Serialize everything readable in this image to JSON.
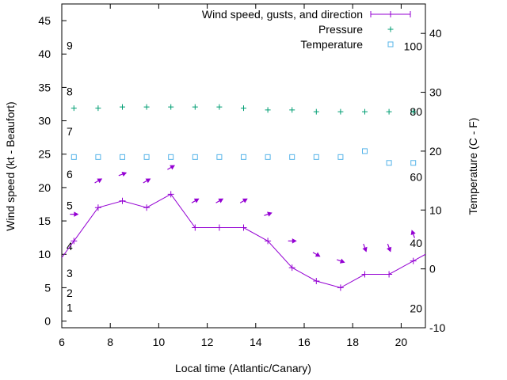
{
  "chart_data": {
    "type": "line",
    "xlabel": "Local time (Atlantic/Canary)",
    "ylabel_left": "Wind speed (kt - Beaufort)",
    "ylabel_right": "Temperature (C - F)",
    "xlim": [
      6,
      21
    ],
    "ylim_left": [
      -1,
      47.5
    ],
    "ylim_right": [
      -10,
      45
    ],
    "x_ticks": [
      6,
      8,
      10,
      12,
      14,
      16,
      18,
      20
    ],
    "y_ticks_left": [
      0,
      5,
      10,
      15,
      20,
      25,
      30,
      35,
      40,
      45
    ],
    "y_ticks_right": [
      -10,
      0,
      10,
      20,
      30,
      40
    ],
    "beaufort_ticks": [
      {
        "label": "1",
        "kt": 2
      },
      {
        "label": "2",
        "kt": 4.2
      },
      {
        "label": "3",
        "kt": 7.2
      },
      {
        "label": "4",
        "kt": 11.2
      },
      {
        "label": "5",
        "kt": 17.3
      },
      {
        "label": "6",
        "kt": 22
      },
      {
        "label": "7",
        "kt": 28.4
      },
      {
        "label": "8",
        "kt": 34.4
      },
      {
        "label": "9",
        "kt": 41.3
      }
    ],
    "fahrenheit_ticks": [
      {
        "label": "20",
        "value": -6.7
      },
      {
        "label": "40",
        "value": 4.4
      },
      {
        "label": "60",
        "value": 15.6
      },
      {
        "label": "80",
        "value": 26.7
      },
      {
        "label": "100",
        "value": 37.8
      }
    ],
    "grid": false,
    "legend_position": "top-right",
    "series": [
      {
        "name": "Wind speed, gusts, and direction",
        "axis": "left",
        "color": "#9400d3",
        "style": "line-points",
        "x": [
          5.5,
          6.5,
          7.5,
          8.5,
          9.5,
          10.5,
          11.5,
          12.5,
          13.5,
          14.5,
          15.5,
          16.5,
          17.5,
          18.5,
          19.5,
          20.5,
          21.5
        ],
        "y": [
          7,
          12,
          17,
          18,
          17,
          19,
          14,
          14,
          14,
          12,
          8,
          6,
          5,
          7,
          7,
          9,
          11
        ]
      },
      {
        "name": "Pressure",
        "axis": "right",
        "color": "#009e73",
        "style": "points",
        "x": [
          6.5,
          7.5,
          8.5,
          9.5,
          10.5,
          11.5,
          12.5,
          13.5,
          14.5,
          15.5,
          16.5,
          17.5,
          18.5,
          19.5,
          20.5
        ],
        "y": [
          27.3,
          27.3,
          27.5,
          27.5,
          27.5,
          27.5,
          27.5,
          27.3,
          27.0,
          27.0,
          26.7,
          26.7,
          26.7,
          26.7,
          26.7
        ]
      },
      {
        "name": "Temperature",
        "axis": "right",
        "color": "#56b4e9",
        "style": "points",
        "x": [
          6.5,
          7.5,
          8.5,
          9.5,
          10.5,
          11.5,
          12.5,
          13.5,
          14.5,
          15.5,
          16.5,
          17.5,
          18.5,
          19.5,
          20.5
        ],
        "y": [
          19,
          19,
          19,
          19,
          19,
          19,
          19,
          19,
          19,
          19,
          19,
          19,
          20,
          18,
          18
        ]
      }
    ],
    "wind_arrows": {
      "color": "#9400d3",
      "points": [
        {
          "x": 6.5,
          "y": 16,
          "dir": 90
        },
        {
          "x": 7.5,
          "y": 21,
          "dir": 60
        },
        {
          "x": 8.5,
          "y": 22,
          "dir": 70
        },
        {
          "x": 9.5,
          "y": 21,
          "dir": 60
        },
        {
          "x": 10.5,
          "y": 23,
          "dir": 60
        },
        {
          "x": 11.5,
          "y": 18,
          "dir": 60
        },
        {
          "x": 12.5,
          "y": 18,
          "dir": 60
        },
        {
          "x": 13.5,
          "y": 18,
          "dir": 60
        },
        {
          "x": 14.5,
          "y": 16,
          "dir": 70
        },
        {
          "x": 15.5,
          "y": 12,
          "dir": 90
        },
        {
          "x": 16.5,
          "y": 10,
          "dir": 120
        },
        {
          "x": 17.5,
          "y": 9,
          "dir": 110
        },
        {
          "x": 18.5,
          "y": 11,
          "dir": 160
        },
        {
          "x": 19.5,
          "y": 11,
          "dir": 160
        },
        {
          "x": 20.5,
          "y": 13,
          "dir": 340
        }
      ]
    }
  }
}
